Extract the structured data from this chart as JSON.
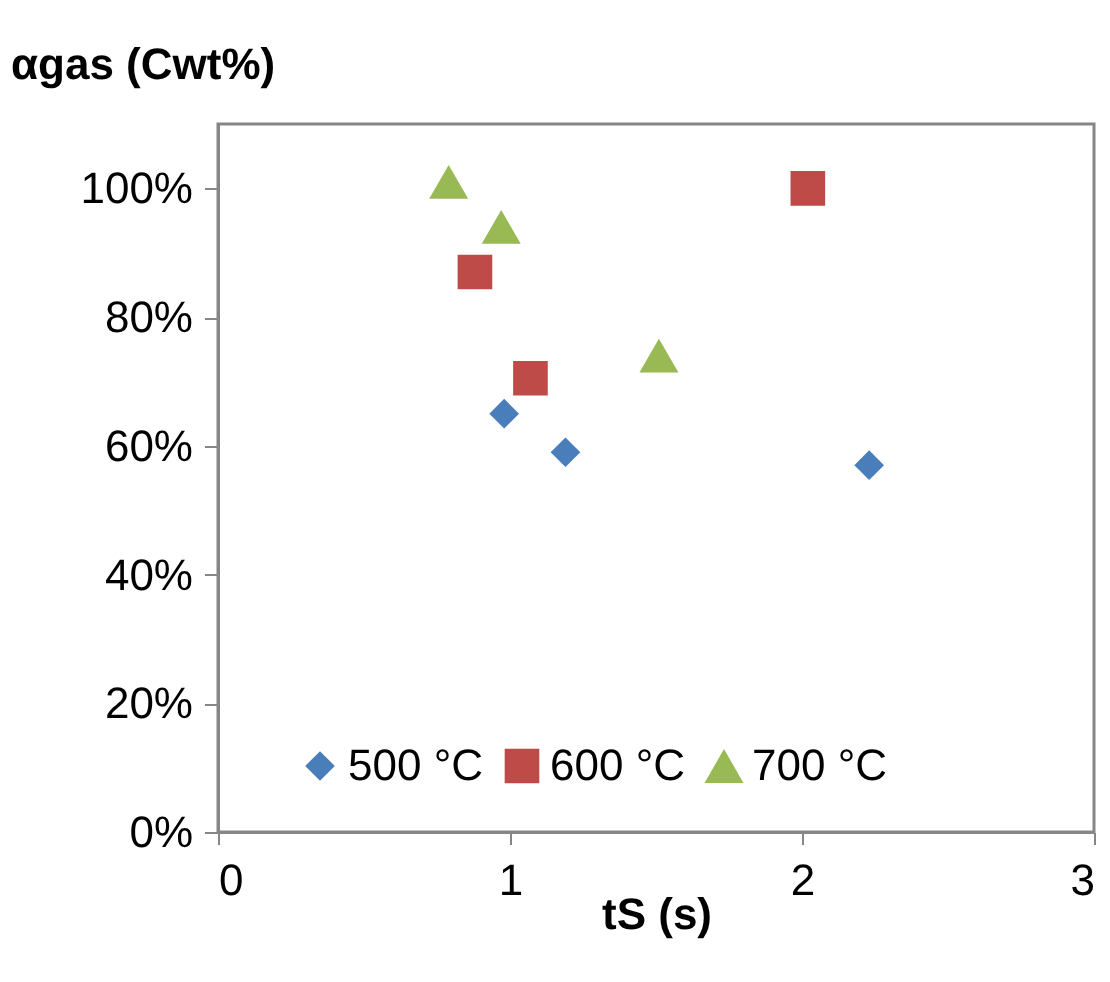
{
  "chart_data": {
    "type": "scatter",
    "ylabel": "αgas (Cwt%)",
    "xlabel": "tS (s)",
    "xlim": [
      0,
      3
    ],
    "xticks": [
      0,
      1,
      2,
      3
    ],
    "ylim": [
      0,
      110
    ],
    "yticks": [
      {
        "value": 0,
        "label": "0%"
      },
      {
        "value": 20,
        "label": "20%"
      },
      {
        "value": 40,
        "label": "40%"
      },
      {
        "value": 60,
        "label": "60%"
      },
      {
        "value": 80,
        "label": "80%"
      },
      {
        "value": 100,
        "label": "100%"
      }
    ],
    "grid": false,
    "legend": "bottom",
    "series": [
      {
        "name": "500 °C",
        "color": "#4a7ebb",
        "marker": "diamond",
        "x": [
          0.98,
          1.19,
          2.23
        ],
        "values": [
          65,
          59,
          57
        ]
      },
      {
        "name": "600 °C",
        "color": "#be4b48",
        "marker": "square",
        "x": [
          0.88,
          1.07,
          2.02
        ],
        "values": [
          87,
          70.5,
          100
        ]
      },
      {
        "name": "700 °C",
        "color": "#98b954",
        "marker": "triangle",
        "x": [
          0.79,
          0.97,
          1.51
        ],
        "values": [
          101,
          94,
          74
        ]
      }
    ]
  }
}
